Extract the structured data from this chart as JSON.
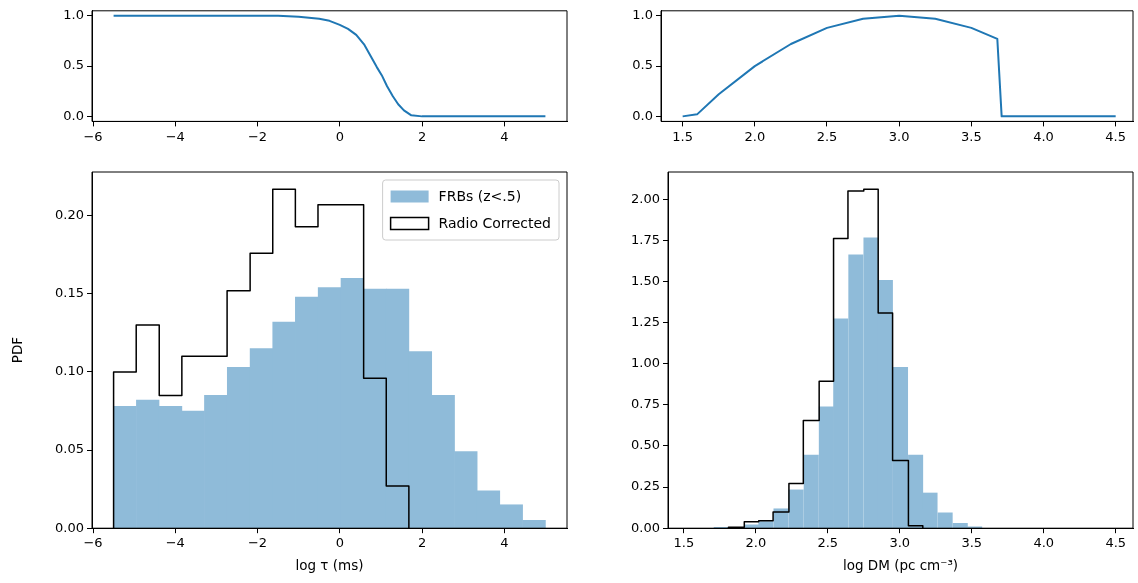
{
  "chart_data": [
    {
      "type": "line",
      "x": [
        -5.5,
        -3,
        -2,
        -1.5,
        -1,
        -0.5,
        -0.25,
        0,
        0.2,
        0.4,
        0.6,
        0.75,
        0.9,
        1.02,
        1.15,
        1.29,
        1.42,
        1.56,
        1.74,
        2,
        3,
        5
      ],
      "values": [
        1,
        1,
        1,
        1,
        0.99,
        0.97,
        0.95,
        0.91,
        0.87,
        0.81,
        0.71,
        0.6,
        0.49,
        0.41,
        0.3,
        0.2,
        0.12,
        0.06,
        0.01,
        0,
        0,
        0
      ],
      "color": "#1f77b4",
      "xlim": [
        -6.025,
        5.525
      ],
      "ylim": [
        -0.05,
        1.05
      ],
      "xticks": [
        -6,
        -4,
        -2,
        0,
        2,
        4
      ],
      "yticks": [
        {
          "value": 0,
          "label": "0.0"
        },
        {
          "value": 0.5,
          "label": "0.5"
        },
        {
          "value": 1,
          "label": "1.0"
        }
      ]
    },
    {
      "type": "line",
      "x": [
        1.5,
        1.6,
        1.75,
        2,
        2.25,
        2.5,
        2.75,
        3,
        3.25,
        3.5,
        3.68,
        3.71,
        4.5
      ],
      "values": [
        0,
        0.02,
        0.22,
        0.5,
        0.72,
        0.88,
        0.97,
        1,
        0.97,
        0.88,
        0.77,
        0,
        0
      ],
      "color": "#1f77b4",
      "xlim": [
        1.35,
        4.62
      ],
      "ylim": [
        -0.05,
        1.05
      ],
      "xticks": [
        {
          "value": 1.5,
          "label": "1.5"
        },
        {
          "value": 2,
          "label": "2.0"
        },
        {
          "value": 2.5,
          "label": "2.5"
        },
        {
          "value": 3,
          "label": "3.0"
        },
        {
          "value": 3.5,
          "label": "3.5"
        },
        {
          "value": 4,
          "label": "4.0"
        },
        {
          "value": 4.5,
          "label": "4.5"
        }
      ],
      "yticks": [
        {
          "value": 0,
          "label": "0.0"
        },
        {
          "value": 0.5,
          "label": "0.5"
        },
        {
          "value": 1,
          "label": "1.0"
        }
      ]
    },
    {
      "type": "histogram",
      "xlabel": "log τ (ms)",
      "ylabel": "PDF",
      "legend": "top right",
      "xlim": [
        -6.025,
        5.525
      ],
      "ylim": [
        0,
        0.228
      ],
      "xticks": [
        -6,
        -4,
        -2,
        0,
        2,
        4
      ],
      "yticks": [
        {
          "value": 0,
          "label": "0.00"
        },
        {
          "value": 0.05,
          "label": "0.05"
        },
        {
          "value": 0.1,
          "label": "0.10"
        },
        {
          "value": 0.15,
          "label": "0.15"
        },
        {
          "value": 0.2,
          "label": "0.20"
        }
      ],
      "bins": [
        -5.5,
        -4.95,
        -4.39,
        -3.84,
        -3.29,
        -2.74,
        -2.18,
        -1.63,
        -1.08,
        -0.53,
        0.03,
        0.58,
        1.13,
        1.68,
        2.24,
        2.79,
        3.34,
        3.89,
        4.45,
        5.0
      ],
      "series": [
        {
          "name": "FRBs (z<.5)",
          "color": "#8fbbd9",
          "values": [
            0.078,
            0.082,
            0.078,
            0.075,
            0.085,
            0.103,
            0.115,
            0.132,
            0.148,
            0.154,
            0.16,
            0.153,
            0.153,
            0.113,
            0.085,
            0.049,
            0.024,
            0.015,
            0.005
          ]
        },
        {
          "name": "Radio Corrected",
          "type": "step",
          "color": "#000000",
          "x": [
            -5.5,
            -5.5,
            -4.95,
            -4.39,
            -3.84,
            -3.29,
            -2.74,
            -2.18,
            -1.63,
            -1.08,
            -0.53,
            0.03,
            0.58,
            1.13,
            1.68
          ],
          "values": [
            0,
            0.1,
            0.13,
            0.085,
            0.11,
            0.11,
            0.152,
            0.176,
            0.217,
            0.193,
            0.207,
            0.207,
            0.096,
            0.027,
            0
          ]
        }
      ]
    },
    {
      "type": "histogram",
      "xlabel": "log DM (pc cm⁻³)",
      "xlim": [
        1.39,
        4.62
      ],
      "ylim": [
        0,
        2.165
      ],
      "xticks": [
        {
          "value": 1.5,
          "label": "1.5"
        },
        {
          "value": 2,
          "label": "2.0"
        },
        {
          "value": 2.5,
          "label": "2.5"
        },
        {
          "value": 3,
          "label": "3.0"
        },
        {
          "value": 3.5,
          "label": "3.5"
        },
        {
          "value": 4,
          "label": "4.0"
        },
        {
          "value": 4.5,
          "label": "4.5"
        }
      ],
      "bins": [
        1.71,
        1.81,
        1.92,
        2.02,
        2.12,
        2.23,
        2.33,
        2.44,
        2.54,
        2.64,
        2.75,
        2.85,
        2.95,
        3.06,
        3.16,
        3.26,
        3.37,
        3.47,
        3.57
      ],
      "yticks": [
        {
          "value": 0,
          "label": "0.00"
        },
        {
          "value": 0.25,
          "label": "0.25"
        },
        {
          "value": 0.5,
          "label": "0.50"
        },
        {
          "value": 0.75,
          "label": "0.75"
        },
        {
          "value": 1,
          "label": "1.00"
        },
        {
          "value": 1.25,
          "label": "1.25"
        },
        {
          "value": 1.5,
          "label": "1.50"
        },
        {
          "value": 1.75,
          "label": "1.75"
        },
        {
          "value": 2,
          "label": "2.00"
        }
      ],
      "series": [
        {
          "color": "#8fbbd9",
          "values": [
            0.006,
            0.004,
            0.02,
            0.04,
            0.118,
            0.233,
            0.444,
            0.737,
            1.273,
            1.661,
            1.765,
            1.506,
            0.978,
            0.444,
            0.214,
            0.093,
            0.029,
            0.008
          ]
        },
        {
          "type": "step",
          "color": "#000000",
          "x": [
            1.81,
            1.81,
            1.92,
            2.02,
            2.12,
            2.23,
            2.33,
            2.44,
            2.54,
            2.64,
            2.75,
            2.85,
            2.95,
            3.06,
            3.16
          ],
          "values": [
            0,
            0.006,
            0.039,
            0.046,
            0.098,
            0.272,
            0.654,
            0.893,
            1.761,
            2.05,
            2.06,
            1.308,
            0.411,
            0.015,
            0
          ]
        }
      ]
    }
  ]
}
